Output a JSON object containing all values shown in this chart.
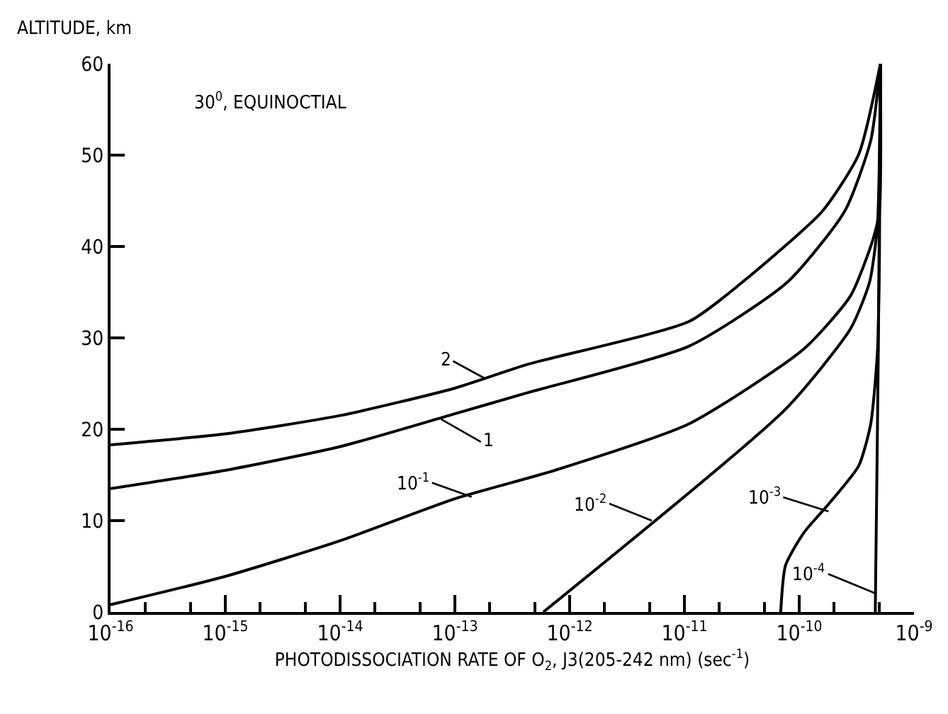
{
  "chart_data": {
    "type": "line",
    "xlabel": "PHOTODISSOCIATION RATE OF O$_{2}$, J3(205-242 nm) (sec$^{-1}$)",
    "ylabel": "ALTITUDE, km",
    "log": "x",
    "grid": false,
    "marker": "none",
    "line_style": "solid",
    "xlim": [
      1e-16,
      1e-09
    ],
    "ylim": [
      0,
      60
    ],
    "xticks": [
      {
        "value": 1e-16,
        "label": "10$^{-16}$"
      },
      {
        "value": 2e-16,
        "label": null
      },
      {
        "value": 5e-16,
        "label": null
      },
      {
        "value": 1e-15,
        "label": "10$^{-15}$"
      },
      {
        "value": 2e-15,
        "label": null
      },
      {
        "value": 5e-15,
        "label": null
      },
      {
        "value": 1e-14,
        "label": "10$^{-14}$"
      },
      {
        "value": 2e-14,
        "label": null
      },
      {
        "value": 5e-14,
        "label": null
      },
      {
        "value": 1e-13,
        "label": "10$^{-13}$"
      },
      {
        "value": 2e-13,
        "label": null
      },
      {
        "value": 5e-13,
        "label": null
      },
      {
        "value": 1e-12,
        "label": "10$^{-12}$"
      },
      {
        "value": 2e-12,
        "label": null
      },
      {
        "value": 5e-12,
        "label": null
      },
      {
        "value": 1e-11,
        "label": "10$^{-11}$"
      },
      {
        "value": 2e-11,
        "label": null
      },
      {
        "value": 5e-11,
        "label": null
      },
      {
        "value": 1e-10,
        "label": "10$^{-10}$"
      },
      {
        "value": 2e-10,
        "label": null
      },
      {
        "value": 5e-10,
        "label": null
      },
      {
        "value": 1e-09,
        "label": "10$^{-9}$"
      }
    ],
    "yticks": [
      0,
      10,
      20,
      30,
      40,
      50,
      60
    ],
    "series": [
      {
        "color": "#000000",
        "x": [
          1e-16,
          1e-15,
          1e-14,
          1e-13,
          4.3e-13,
          1.1e-11,
          3.2e-11,
          1.6e-10,
          3.3e-10,
          5.1e-10
        ],
        "values": [
          18.3,
          19.5,
          21.5,
          24.5,
          27.1,
          31.8,
          36.1,
          43.9,
          50.1,
          60
        ]
      },
      {
        "color": "#000000",
        "x": [
          1e-16,
          1e-15,
          1e-14,
          1e-13,
          4.3e-13,
          1.1e-11,
          7.9e-11,
          2.5e-10,
          4.2e-10,
          5.1e-10
        ],
        "values": [
          13.5,
          15.5,
          18.1,
          21.7,
          24,
          29.1,
          36.1,
          43.9,
          51.6,
          60
        ]
      },
      {
        "color": "#000000",
        "x": [
          1e-16,
          1e-15,
          1e-14,
          1e-13,
          7.4e-13,
          1.1e-11,
          1.1e-10,
          2.8e-10,
          4.4e-10,
          5e-10,
          5.1e-10
        ],
        "values": [
          0.8,
          3.9,
          7.8,
          12.4,
          15.5,
          20.6,
          28.8,
          34.6,
          40.8,
          44,
          60
        ]
      },
      {
        "color": "#000000",
        "x": [
          5.9e-13,
          7.6e-11,
          2.8e-10,
          4.1e-10,
          4.8e-10,
          5.1e-10
        ],
        "values": [
          0,
          22.2,
          31,
          36.1,
          42.3,
          60
        ]
      },
      {
        "color": "#000000",
        "x": [
          6.9e-11,
          7.6e-11,
          1.1e-10,
          1.8e-10,
          3.3e-10,
          4.2e-10,
          4.8e-10,
          5e-10,
          5.1e-10
        ],
        "values": [
          0,
          5.1,
          8.7,
          11.8,
          16,
          20.6,
          28.4,
          38.8,
          60
        ]
      },
      {
        "color": "#000000",
        "x": [
          4.6e-10,
          4.7e-10,
          4.9e-10,
          5.1e-10
        ],
        "values": [
          0,
          10,
          30,
          60
        ]
      }
    ],
    "annotations": [
      "30$^{0}$, EQUINOCTIAL",
      {
        "text": "2",
        "x": 1.8e-13,
        "y": 25.6
      },
      {
        "text": "1",
        "x": 7.6e-14,
        "y": 21.1
      },
      {
        "text": "10$^{-1}$",
        "x": 1.4e-13,
        "y": 12.6
      },
      {
        "text": "10$^{-2}$",
        "x": 5.2e-12,
        "y": 10
      },
      {
        "text": "10$^{-3}$",
        "x": 1.8e-10,
        "y": 11
      },
      {
        "text": "10$^{-4}$",
        "x": 4.7e-10,
        "y": 2
      }
    ]
  }
}
